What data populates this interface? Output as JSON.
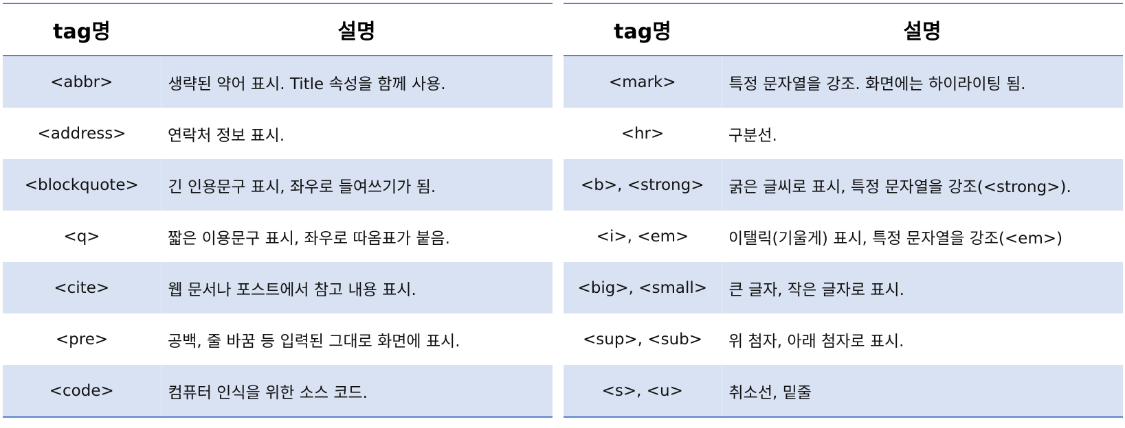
{
  "headers": {
    "tag": "tag명",
    "desc": "설명"
  },
  "left_rows": [
    {
      "tag": "<abbr>",
      "desc": "생략된 약어 표시. Title 속성을 함께 사용."
    },
    {
      "tag": "<address>",
      "desc": "연락처 정보 표시."
    },
    {
      "tag": "<blockquote>",
      "desc": "긴 인용문구 표시, 좌우로 들여쓰기가 됨."
    },
    {
      "tag": "<q>",
      "desc": "짧은 이용문구 표시, 좌우로 따옴표가 붙음."
    },
    {
      "tag": "<cite>",
      "desc": "웹 문서나 포스트에서 참고 내용 표시."
    },
    {
      "tag": "<pre>",
      "desc": "공백, 줄 바꿈 등 입력된 그대로 화면에 표시."
    },
    {
      "tag": "<code>",
      "desc": "컴퓨터 인식을 위한 소스 코드."
    }
  ],
  "right_rows": [
    {
      "tag": "<mark>",
      "desc": "특정 문자열을 강조. 화면에는 하이라이팅 됨."
    },
    {
      "tag": "<hr>",
      "desc": "구분선."
    },
    {
      "tag": "<b>, <strong>",
      "desc": "굵은 글씨로 표시, 특정 문자열을 강조(<strong>)."
    },
    {
      "tag": "<i>, <em>",
      "desc": "이탤릭(기울게) 표시, 특정 문자열을 강조(<em>)"
    },
    {
      "tag": "<big>, <small>",
      "desc": "큰 글자, 작은 글자로 표시."
    },
    {
      "tag": "<sup>, <sub>",
      "desc": "위 첨자, 아래 첨자로 표시."
    },
    {
      "tag": "<s>, <u>",
      "desc": "취소선, 밑줄"
    }
  ],
  "colors": {
    "border_blue": "#5b7fc9",
    "row_band": "#d9e2f3"
  }
}
